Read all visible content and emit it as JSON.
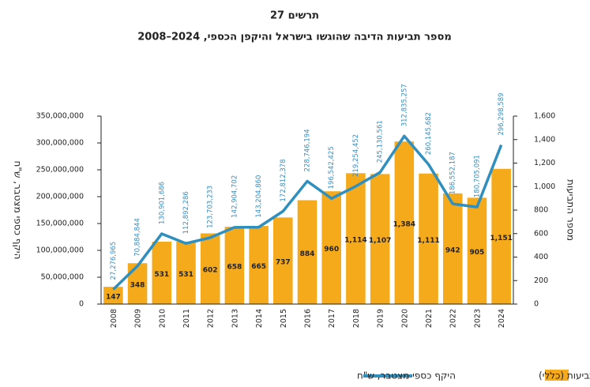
{
  "chart_data": {
    "type": "bar",
    "title": "תרשים 27",
    "subtitle": "מספר תביעות הדיבה שהוגשו בישראל והיקפן הכספי, 2024–2008",
    "ylabel": "היקף כספי מצטבר, ש\"ח",
    "y2label": "מספר התביעות",
    "categories": [
      "2008",
      "2009",
      "2010",
      "2011",
      "2012",
      "2013",
      "2014",
      "2015",
      "2016",
      "2017",
      "2018",
      "2019",
      "2020",
      "2021",
      "2022",
      "2023",
      "2024"
    ],
    "series": [
      {
        "name": "מספר התביעות (כללי)",
        "type": "bar",
        "axis": "y2",
        "color": "#f5aa1c",
        "values": [
          147,
          348,
          531,
          531,
          602,
          658,
          665,
          737,
          884,
          960,
          1114,
          1107,
          1384,
          1111,
          942,
          905,
          1151
        ],
        "value_labels": [
          "147",
          "348",
          "531",
          "531",
          "602",
          "658",
          "665",
          "737",
          "884",
          "960",
          "1,114",
          "1,107",
          "1,384",
          "1,111",
          "942",
          "905",
          "1,151"
        ]
      },
      {
        "name": "היקף כספי מצטבר, ש\"ח",
        "type": "line",
        "color": "#2f8fbe",
        "values": [
          27276965,
          70884844,
          130901686,
          112892286,
          123703233,
          142904702,
          143204860,
          172812378,
          228746194,
          196542425,
          219254452,
          245130561,
          312835257,
          260145682,
          186552187,
          180705091,
          296298589
        ],
        "value_labels": [
          "27,276,965",
          "70,884,844",
          "130,901,686",
          "112,892,286",
          "123,703,233",
          "142,904,702",
          "143,204,860",
          "172,812,378",
          "228,746,194",
          "196,542,425",
          "219,254,452",
          "245,130,561",
          "312,835,257",
          "260,145,682",
          "186,552,187",
          "180,705,091",
          "296,298,589"
        ]
      }
    ],
    "ylim": [
      0,
      350000000
    ],
    "yticks": [
      0,
      {
        "value": 50000000,
        "label": "50,000,000"
      },
      {
        "value": 100000000,
        "label": "100,000,000"
      },
      {
        "value": 150000000,
        "label": "150,000,000"
      },
      {
        "value": 200000000,
        "label": "200,000,000"
      },
      {
        "value": 250000000,
        "label": "250,000,000"
      },
      {
        "value": 300000000,
        "label": "300,000,000"
      },
      {
        "value": 350000000,
        "label": "350,000,000"
      }
    ],
    "y2lim": [
      0,
      1600
    ],
    "y2ticks": [
      0,
      200,
      400,
      600,
      800,
      {
        "value": 1000,
        "label": "1,000"
      },
      {
        "value": 1200,
        "label": "1,200"
      },
      {
        "value": 1400,
        "label": "1,400"
      },
      {
        "value": 1600,
        "label": "1,600"
      }
    ]
  }
}
